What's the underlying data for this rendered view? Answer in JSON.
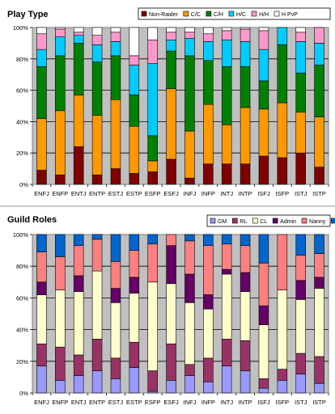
{
  "chart_data": [
    {
      "type": "bar",
      "stacked": true,
      "title": "Play Type",
      "categories": [
        "ENFJ",
        "ENFP",
        "ENTJ",
        "ENTP",
        "ESTJ",
        "ESTP",
        "ESFP",
        "ESFJ",
        "INFJ",
        "INFP",
        "INTJ",
        "INTP",
        "ISFJ",
        "ISFP",
        "ISTJ",
        "ISTP"
      ],
      "ylim": [
        0,
        100
      ],
      "yticks": [
        "0%",
        "20%",
        "40%",
        "60%",
        "80%",
        "100%"
      ],
      "legend": "top-right",
      "grid": true,
      "series": [
        {
          "name": "Non-Raider",
          "color": "#800000",
          "values": [
            9,
            6,
            24,
            6,
            10,
            7,
            8,
            16,
            4,
            13,
            13,
            13,
            18,
            17,
            20,
            11
          ]
        },
        {
          "name": "C/C",
          "color": "#ff9900",
          "values": [
            33,
            41,
            33,
            38,
            44,
            30,
            7,
            45,
            30,
            38,
            25,
            36,
            30,
            35,
            26,
            32
          ]
        },
        {
          "name": "C/H",
          "color": "#008000",
          "values": [
            33,
            35,
            33,
            34,
            28,
            20,
            16,
            24,
            48,
            28,
            37,
            26,
            18,
            37,
            25,
            33
          ]
        },
        {
          "name": "H/C",
          "color": "#00ccff",
          "values": [
            11,
            12,
            5,
            11,
            9,
            19,
            46,
            7,
            11,
            12,
            17,
            16,
            20,
            11,
            20,
            14
          ]
        },
        {
          "name": "H/H",
          "color": "#ff99cc",
          "values": [
            10,
            5,
            2,
            6,
            6,
            6,
            15,
            5,
            4,
            5,
            6,
            8,
            12,
            0,
            6,
            10
          ]
        },
        {
          "name": "H PvP",
          "color": "#ffffff",
          "values": [
            4,
            1,
            3,
            5,
            3,
            18,
            8,
            3,
            3,
            4,
            2,
            1,
            2,
            0,
            3,
            0
          ]
        }
      ]
    },
    {
      "type": "bar",
      "stacked": true,
      "title": "Guild Roles",
      "categories": [
        "ENFJ",
        "ENFP",
        "ENTJ",
        "ENTP",
        "ESTJ",
        "ESTP",
        "ESFP",
        "ESFJ",
        "INFJ",
        "INFP",
        "INTJ",
        "INTP",
        "ISFJ",
        "ISFP",
        "ISTJ",
        "ISTP"
      ],
      "ylim": [
        0,
        100
      ],
      "yticks": [
        "0%",
        "20%",
        "40%",
        "60%",
        "80%",
        "100%"
      ],
      "legend": "top-right",
      "grid": true,
      "series": [
        {
          "name": "GM",
          "color": "#9999ff",
          "values": [
            17,
            8,
            11,
            14,
            9,
            16,
            1,
            8,
            11,
            7,
            17,
            14,
            3,
            8,
            12,
            6
          ]
        },
        {
          "name": "RL",
          "color": "#993366",
          "values": [
            14,
            21,
            13,
            20,
            13,
            16,
            13,
            23,
            7,
            15,
            17,
            19,
            6,
            7,
            13,
            17
          ]
        },
        {
          "name": "CL",
          "color": "#ffffcc",
          "values": [
            31,
            36,
            40,
            43,
            35,
            31,
            56,
            38,
            39,
            31,
            41,
            31,
            34,
            50,
            34,
            43
          ]
        },
        {
          "name": "Admin",
          "color": "#660066",
          "values": [
            8,
            0,
            10,
            0,
            9,
            10,
            0,
            24,
            18,
            9,
            3,
            12,
            12,
            0,
            12,
            7
          ]
        },
        {
          "name": "Nanny",
          "color": "#ff8080",
          "values": [
            19,
            21,
            19,
            20,
            17,
            17,
            24,
            7,
            21,
            31,
            16,
            17,
            27,
            35,
            16,
            15
          ]
        },
        {
          "name": "Hire",
          "color": "#0066cc",
          "values": [
            11,
            14,
            7,
            3,
            17,
            10,
            6,
            0,
            4,
            7,
            6,
            7,
            18,
            0,
            13,
            12
          ]
        }
      ]
    }
  ]
}
